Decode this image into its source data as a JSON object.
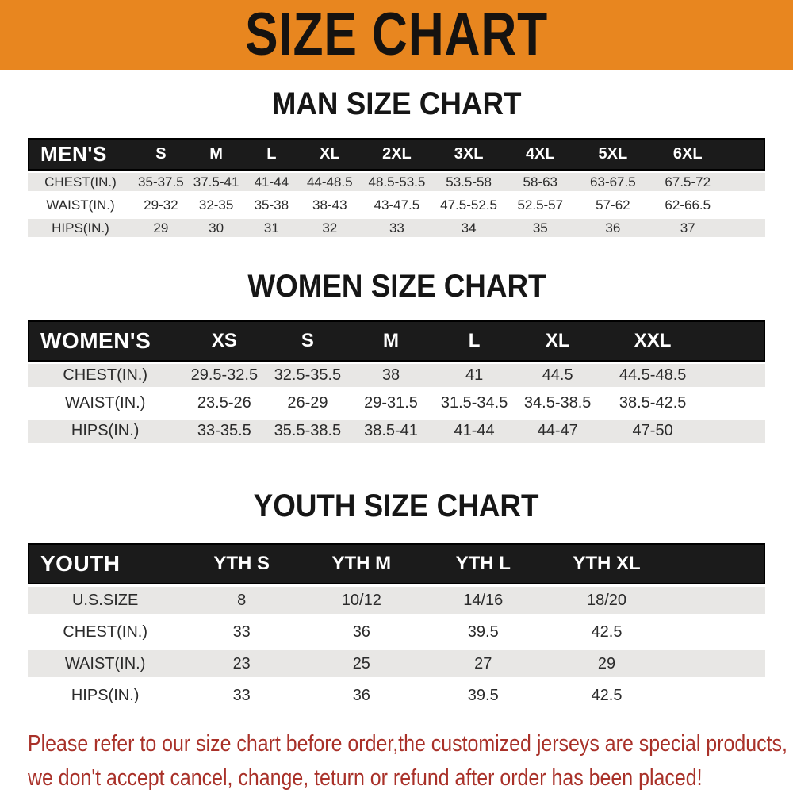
{
  "banner": {
    "title": "SIZE CHART",
    "background_color": "#E8861F",
    "text_color": "#151210"
  },
  "sections": {
    "men": {
      "title": "MAN SIZE CHART",
      "table": {
        "header": [
          "MEN'S",
          "S",
          "M",
          "L",
          "XL",
          "2XL",
          "3XL",
          "4XL",
          "5XL",
          "6XL"
        ],
        "rows": [
          [
            "CHEST(IN.)",
            "35-37.5",
            "37.5-41",
            "41-44",
            "44-48.5",
            "48.5-53.5",
            "53.5-58",
            "58-63",
            "63-67.5",
            "67.5-72"
          ],
          [
            "WAIST(IN.)",
            "29-32",
            "32-35",
            "35-38",
            "38-43",
            "43-47.5",
            "47.5-52.5",
            "52.5-57",
            "57-62",
            "62-66.5"
          ],
          [
            "HIPS(IN.)",
            "29",
            "30",
            "31",
            "32",
            "33",
            "34",
            "35",
            "36",
            "37"
          ]
        ]
      }
    },
    "women": {
      "title": "WOMEN SIZE CHART",
      "table": {
        "header": [
          "WOMEN'S",
          "XS",
          "S",
          "M",
          "L",
          "XL",
          "XXL"
        ],
        "rows": [
          [
            "CHEST(IN.)",
            "29.5-32.5",
            "32.5-35.5",
            "38",
            "41",
            "44.5",
            "44.5-48.5"
          ],
          [
            "WAIST(IN.)",
            "23.5-26",
            "26-29",
            "29-31.5",
            "31.5-34.5",
            "34.5-38.5",
            "38.5-42.5"
          ],
          [
            "HIPS(IN.)",
            "33-35.5",
            "35.5-38.5",
            "38.5-41",
            "41-44",
            "44-47",
            "47-50"
          ]
        ]
      }
    },
    "youth": {
      "title": "YOUTH SIZE CHART",
      "table": {
        "header": [
          "YOUTH",
          "YTH S",
          "YTH M",
          "YTH L",
          "YTH XL"
        ],
        "rows": [
          [
            "U.S.SIZE",
            "8",
            "10/12",
            "14/16",
            "18/20"
          ],
          [
            "CHEST(IN.)",
            "33",
            "36",
            "39.5",
            "42.5"
          ],
          [
            "WAIST(IN.)",
            "23",
            "25",
            "27",
            "29"
          ],
          [
            "HIPS(IN.)",
            "33",
            "36",
            "39.5",
            "42.5"
          ]
        ]
      }
    }
  },
  "note": {
    "text_color": "#A93129",
    "lines": [
      "Please refer to our size chart before order,the customized jerseys are special products,",
      "we don't accept cancel, change, teturn or refund after order has been placed!"
    ]
  },
  "colors": {
    "table_header_bg": "#1B1B1B",
    "table_header_text": "#FFFFFF",
    "row_stripe": "#E8E7E5",
    "cell_text": "#2B2B2B"
  }
}
